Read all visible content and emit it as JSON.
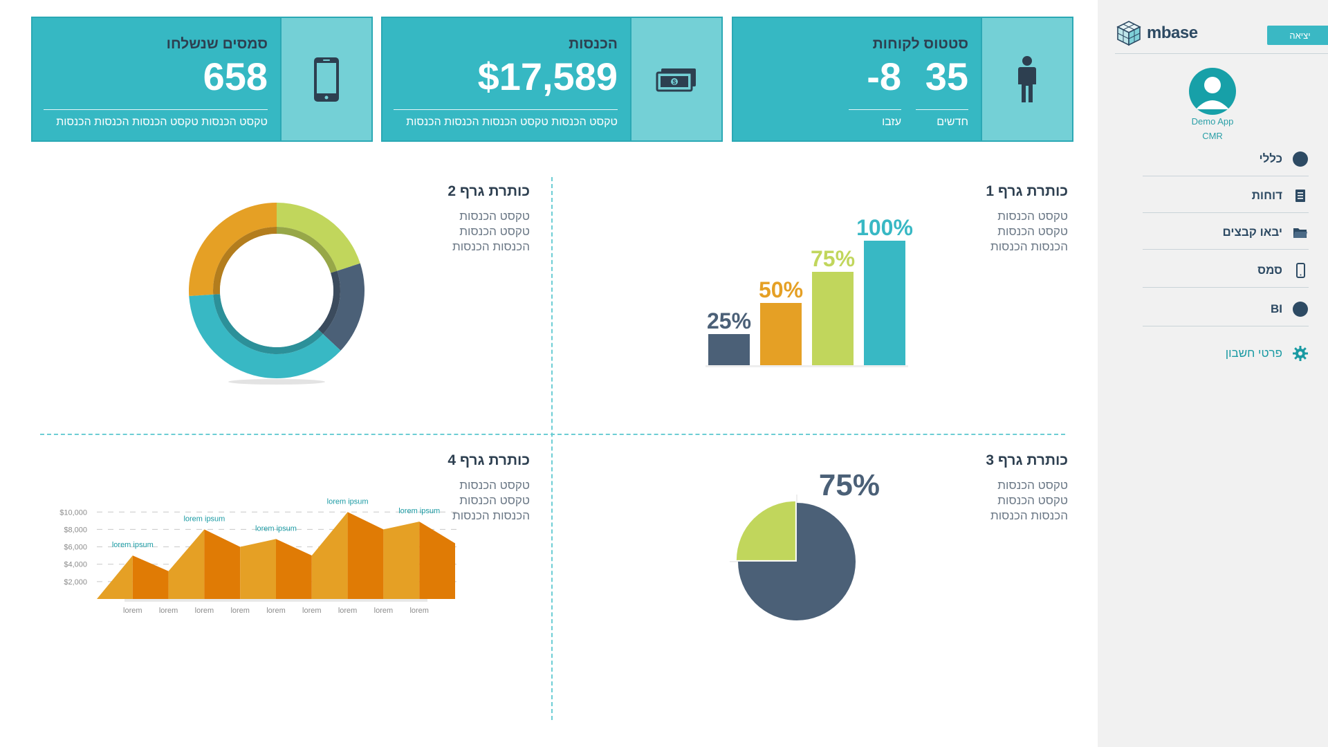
{
  "sidebar": {
    "brand": "mbase",
    "exit_label": "יציאה",
    "user_name": "Demo App",
    "user_role": "CMR",
    "nav": [
      {
        "label": "כללי",
        "icon": "circle-icon"
      },
      {
        "label": "דוחות",
        "icon": "report-icon"
      },
      {
        "label": "יבאו קבצים",
        "icon": "folder-icon"
      },
      {
        "label": "סמס",
        "icon": "phone-icon"
      },
      {
        "label": "BI",
        "icon": "circle-icon"
      }
    ],
    "account_label": "פרטי חשבון"
  },
  "cards": {
    "customers": {
      "title": "סטטוס לקוחות",
      "new_value": "35",
      "new_label": "חדשים",
      "left_value": "-8",
      "left_label": "עזבו"
    },
    "income": {
      "title": "הכנסות",
      "value": "$17,589",
      "sub": "טקסט הכנסות טקסט הכנסות הכנסות הכנסות"
    },
    "sms": {
      "title": "סמסים שנשלחו",
      "value": "658",
      "sub": "טקסט הכנסות טקסט הכנסות הכנסות הכנסות"
    }
  },
  "graphs": {
    "g1": {
      "title": "כותרת גרף 1",
      "lines": [
        "טקסט הכנסות",
        "טקסט הכנסות",
        "הכנסות הכנסות"
      ]
    },
    "g2": {
      "title": "כותרת גרף 2",
      "lines": [
        "טקסט הכנסות",
        "טקסט הכנסות",
        "הכנסות הכנסות"
      ]
    },
    "g3": {
      "title": "כותרת גרף 3",
      "lines": [
        "טקסט הכנסות",
        "טקסט הכנסות",
        "הכנסות הכנסות"
      ]
    },
    "g4": {
      "title": "כותרת גרף 4",
      "lines": [
        "טקסט הכנסות",
        "טקסט הכנסות",
        "הכנסות הכנסות"
      ]
    }
  },
  "chart_data": [
    {
      "type": "bar",
      "categories": [
        "25%",
        "50%",
        "75%",
        "100%"
      ],
      "values": [
        25,
        50,
        75,
        100
      ],
      "colors": [
        "#4b6077",
        "#e5a025",
        "#c1d65c",
        "#38b8c4"
      ],
      "ylim": [
        0,
        100
      ]
    },
    {
      "type": "pie",
      "variant": "donut",
      "values": [
        20,
        17,
        37,
        26
      ],
      "colors": [
        "#c1d65c",
        "#4b6077",
        "#38b8c4",
        "#e5a025"
      ]
    },
    {
      "type": "pie",
      "label": "75%",
      "values": [
        75,
        25
      ],
      "colors": [
        "#4b6077",
        "#c1d65c"
      ]
    },
    {
      "type": "area",
      "categories": [
        "lorem",
        "lorem",
        "lorem",
        "lorem",
        "lorem",
        "lorem",
        "lorem",
        "lorem",
        "lorem"
      ],
      "values": [
        5000,
        3200,
        8000,
        6000,
        6900,
        5000,
        10000,
        8000,
        8900
      ],
      "ticks": [
        "$10,000",
        "$8,000",
        "$6,000",
        "$4,000",
        "$2,000"
      ],
      "ylim": [
        0,
        10500
      ],
      "annotations": [
        {
          "index": 0,
          "text": "lorem ipsum"
        },
        {
          "index": 2,
          "text": "lorem ipsum"
        },
        {
          "index": 4,
          "text": "lorem ipsum"
        },
        {
          "index": 6,
          "text": "lorem ipsum"
        },
        {
          "index": 8,
          "text": "lorem ipsum"
        }
      ],
      "colors": [
        "#e5a025",
        "#e07b05"
      ]
    }
  ]
}
